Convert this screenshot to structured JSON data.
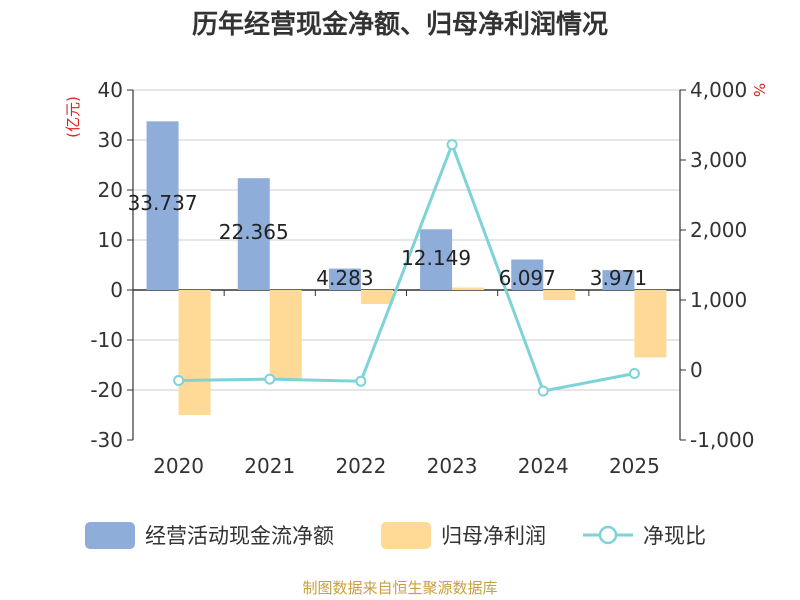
{
  "chart_data": {
    "type": "bar",
    "title": "历年经营现金净额、归母净利润情况",
    "left_unit": "(亿元)",
    "right_unit": "%",
    "categories": [
      "2020",
      "2021",
      "2022",
      "2023",
      "2024",
      "2025"
    ],
    "series": [
      {
        "name": "经营活动现金流净额",
        "type": "bar",
        "axis": "left",
        "color": "#8fadd9",
        "values": [
          33.737,
          22.365,
          4.283,
          12.149,
          6.097,
          3.971
        ],
        "labels": [
          "33.737",
          "22.365",
          "4.283",
          "12.149",
          "6.097",
          "3.971"
        ]
      },
      {
        "name": "归母净利润",
        "type": "bar",
        "axis": "left",
        "color": "#ffd996",
        "values": [
          -25.0,
          -18.0,
          -2.8,
          0.5,
          -2.0,
          -13.5
        ]
      },
      {
        "name": "净现比",
        "type": "line",
        "axis": "right",
        "color": "#7dd3d8",
        "values": [
          -150,
          -130,
          -160,
          3220,
          -300,
          -50
        ]
      }
    ],
    "left_axis": {
      "min": -30,
      "max": 40,
      "ticks": [
        "40",
        "30",
        "20",
        "10",
        "0",
        "-10",
        "-20",
        "-30"
      ]
    },
    "right_axis": {
      "min": -1000,
      "max": 4000,
      "ticks": [
        "4,000",
        "3,000",
        "2,000",
        "1,000",
        "0",
        "-1,000"
      ]
    },
    "grid": true,
    "legend_position": "bottom",
    "source": "制图数据来自恒生聚源数据库",
    "colors": {
      "title": "#333333",
      "unit": "#e02020",
      "grid": "#cccccc",
      "axis": "#333333",
      "source": "#c8a040"
    }
  }
}
